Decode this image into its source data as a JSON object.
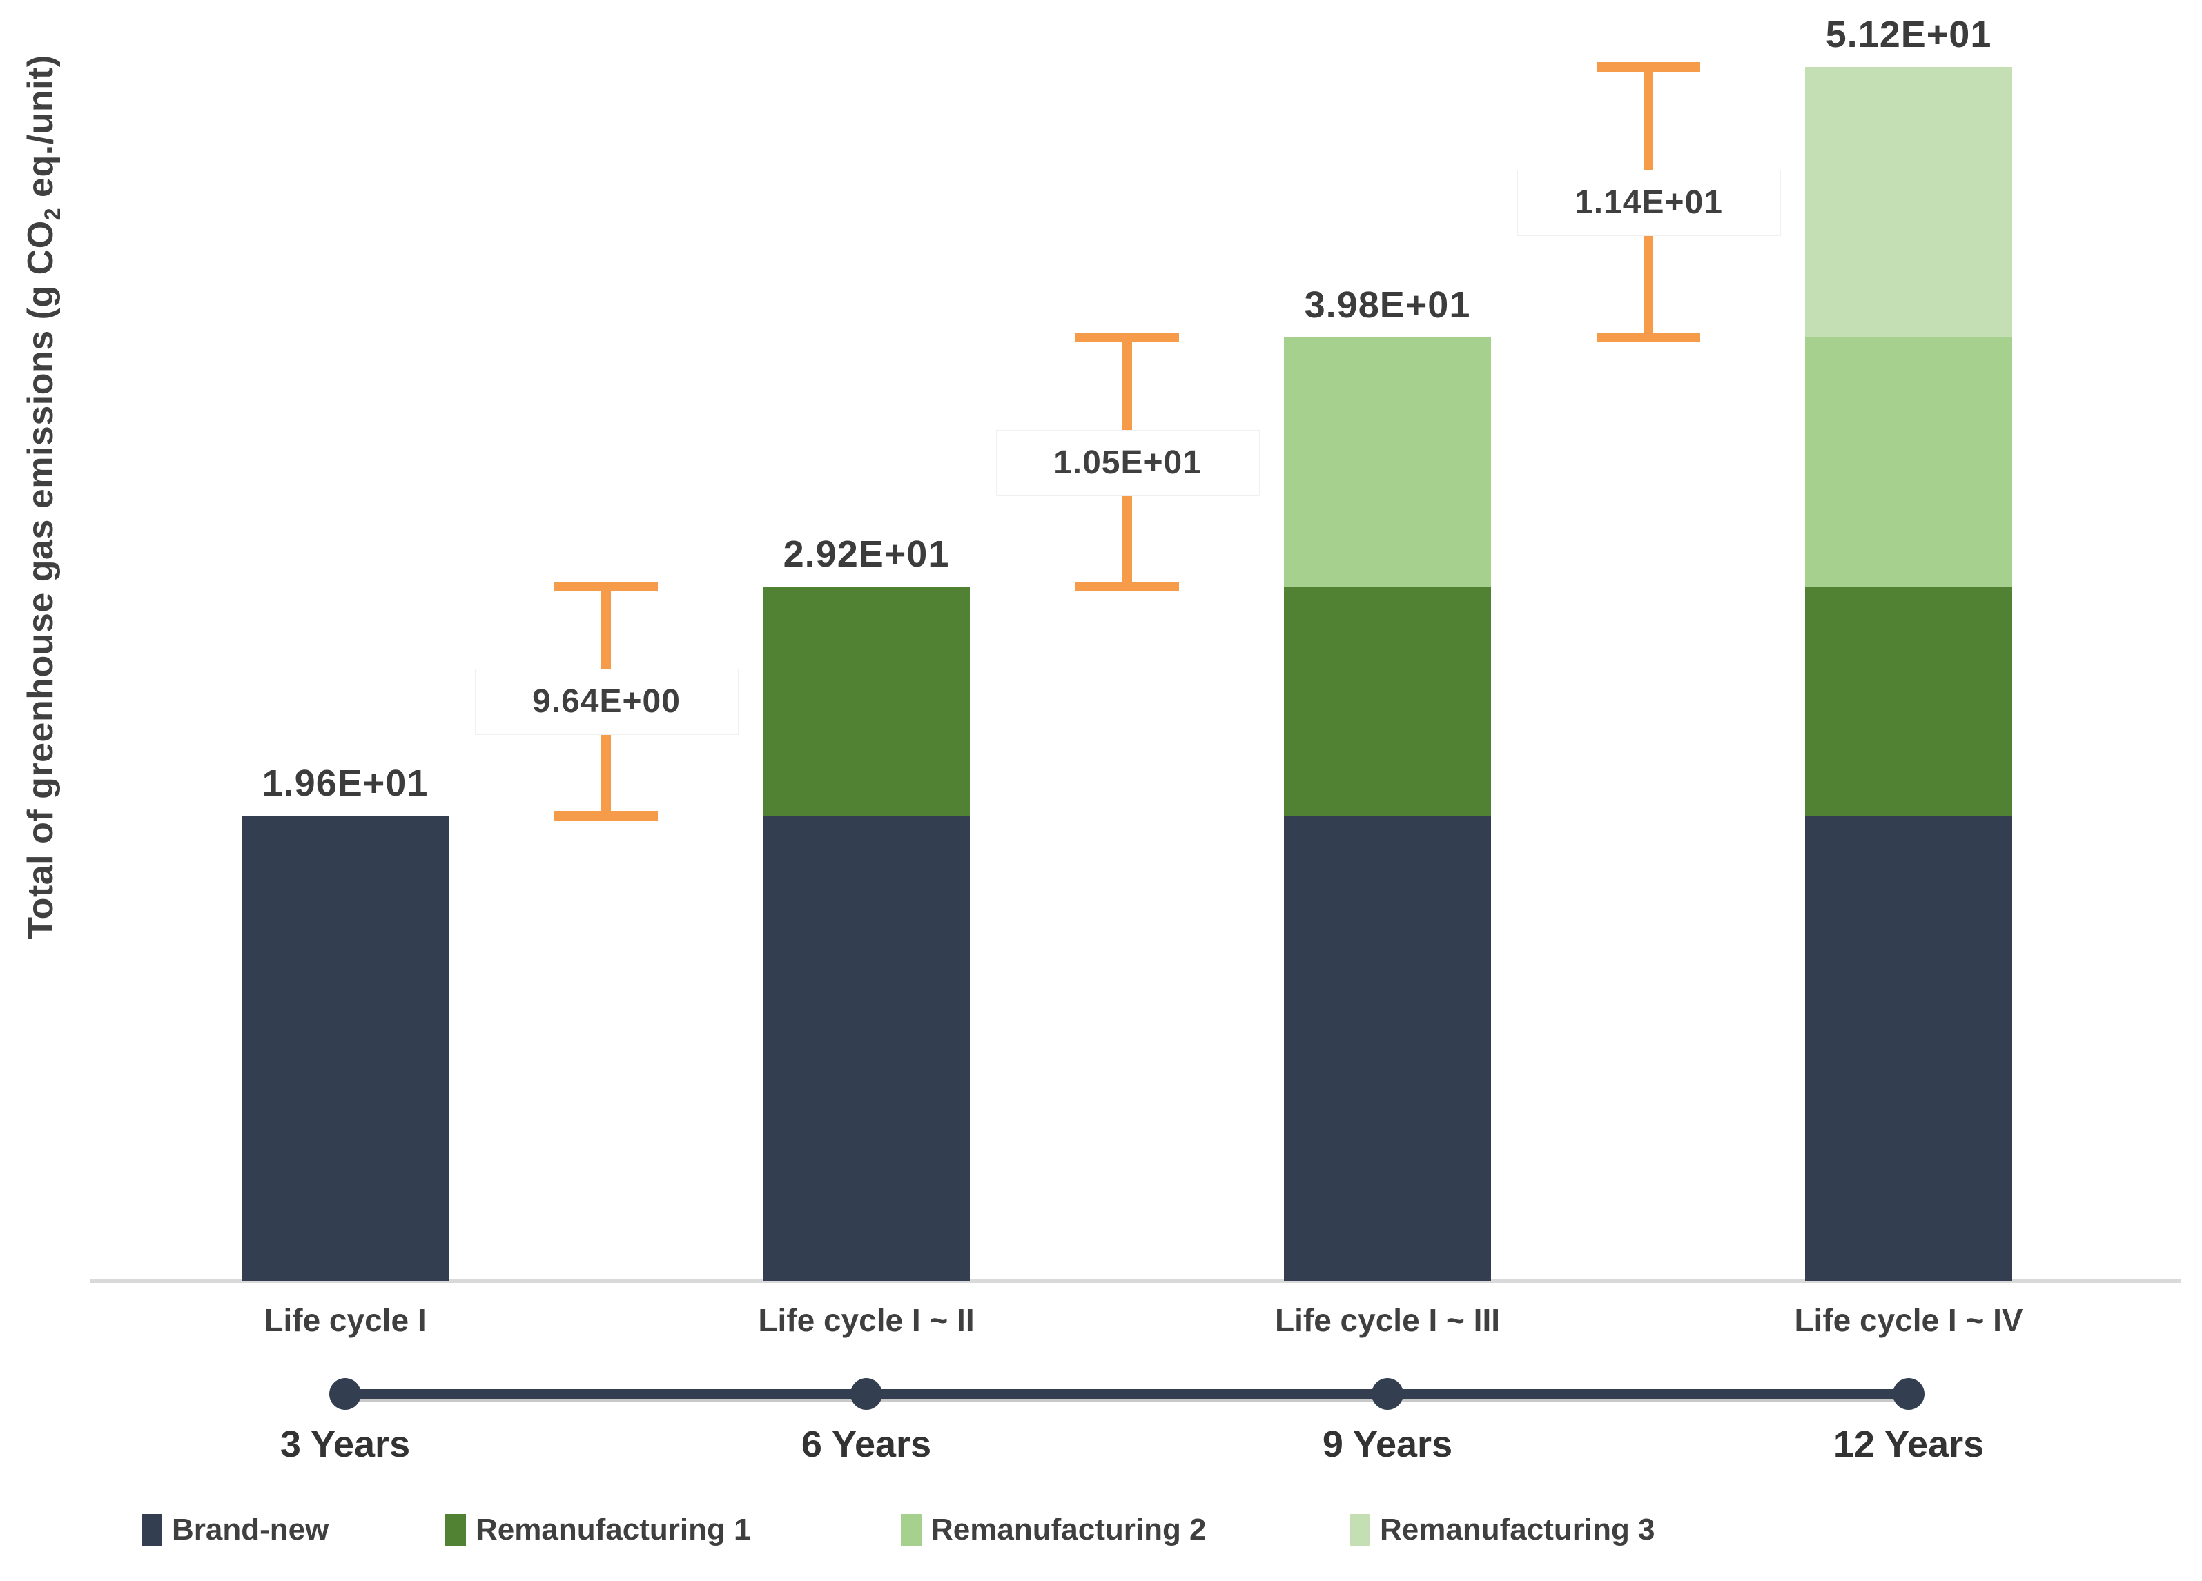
{
  "figure": {
    "y_axis": {
      "label_prefix": "Total of greenhouse gas emissions (g CO",
      "label_sub": "2",
      "label_suffix": " eq./unit)"
    },
    "colors": {
      "brand_new": "#333E50",
      "remanufacturing_1": "#518234",
      "remanufacturing_2": "#A6D08D",
      "remanufacturing_3": "#C5DFB4",
      "annotation_orange": "#F59B49",
      "axis_line": "#D9D9D9",
      "timeline": "#333E50",
      "text": "#3F3F3F"
    }
  },
  "chart_data": {
    "type": "bar",
    "stacked": true,
    "title": "",
    "xlabel": "",
    "ylabel": "Total of greenhouse gas emissions (g CO2 eq./unit)",
    "ylim": [
      0,
      53
    ],
    "grid": false,
    "legend_position": "bottom",
    "categories": [
      "Life cycle I",
      "Life cycle I ~ II",
      "Life cycle I ~ III",
      "Life cycle I ~ IV"
    ],
    "series": [
      {
        "name": "Brand-new",
        "color": "#333E50",
        "values": [
          19.6,
          19.6,
          19.6,
          19.6
        ]
      },
      {
        "name": "Remanufacturing 1",
        "color": "#518234",
        "values": [
          0,
          9.64,
          9.64,
          9.64
        ]
      },
      {
        "name": "Remanufacturing 2",
        "color": "#A6D08D",
        "values": [
          0,
          0,
          10.5,
          10.5
        ]
      },
      {
        "name": "Remanufacturing 3",
        "color": "#C5DFB4",
        "values": [
          0,
          0,
          0,
          11.4
        ]
      }
    ],
    "totals_labels": [
      "1.96E+01",
      "2.92E+01",
      "3.98E+01",
      "5.12E+01"
    ],
    "totals_values": [
      19.6,
      29.2,
      39.8,
      51.2
    ],
    "annotations": [
      {
        "label": "9.64E+00",
        "value": 9.64,
        "between": [
          0,
          1
        ]
      },
      {
        "label": "1.05E+01",
        "value": 10.5,
        "between": [
          1,
          2
        ]
      },
      {
        "label": "1.14E+01",
        "value": 11.4,
        "between": [
          2,
          3
        ]
      }
    ],
    "timeline": {
      "labels": [
        "3 Years",
        "6 Years",
        "9 Years",
        "12 Years"
      ]
    }
  }
}
